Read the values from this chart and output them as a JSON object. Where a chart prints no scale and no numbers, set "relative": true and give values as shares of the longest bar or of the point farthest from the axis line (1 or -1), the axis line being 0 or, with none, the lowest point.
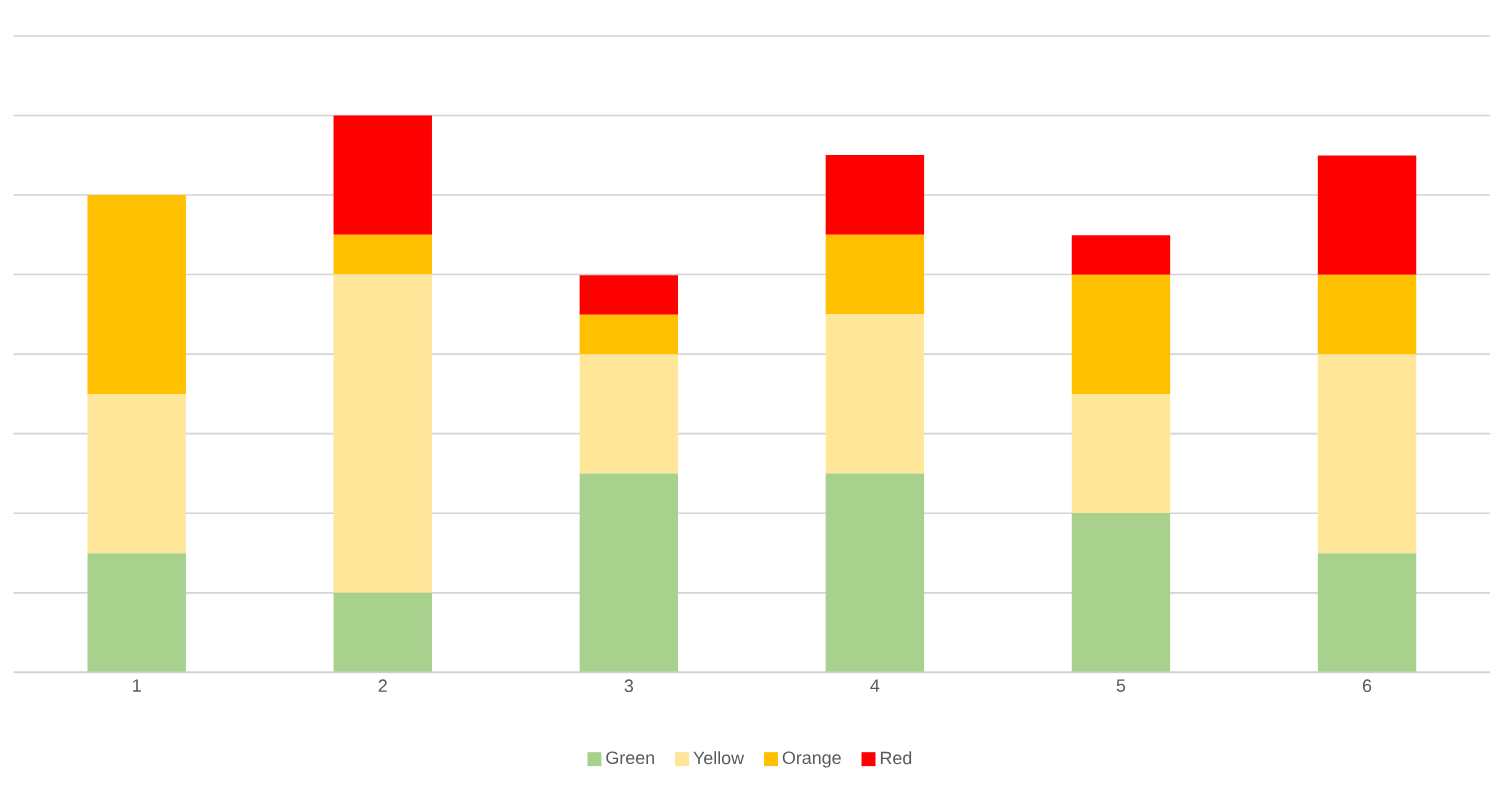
{
  "chart_data": {
    "type": "bar",
    "stacked": true,
    "relative": true,
    "grid": "y",
    "legend": "bottom",
    "categories": [
      "1",
      "2",
      "3",
      "4",
      "5",
      "6"
    ],
    "series": [
      {
        "name": "Green",
        "color": "#a9d18e",
        "values": [
          0.214,
          0.143,
          0.357,
          0.357,
          0.286,
          0.214
        ]
      },
      {
        "name": "Yellow",
        "color": "#ffe699",
        "values": [
          0.286,
          0.572,
          0.214,
          0.286,
          0.214,
          0.357
        ]
      },
      {
        "name": "Orange",
        "color": "#ffc000",
        "values": [
          0.357,
          0.071,
          0.071,
          0.143,
          0.214,
          0.143
        ]
      },
      {
        "name": "Red",
        "color": "#ff0000",
        "values": [
          0.0,
          0.214,
          0.071,
          0.143,
          0.071,
          0.214
        ]
      }
    ]
  }
}
